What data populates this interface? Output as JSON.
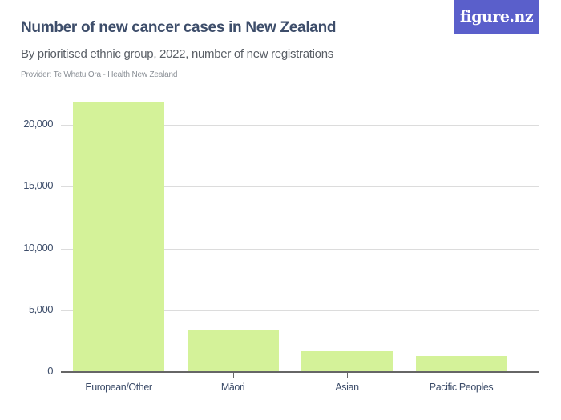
{
  "header": {
    "title": "Number of new cancer cases in New Zealand",
    "subtitle": "By prioritised ethnic group, 2022, number of new registrations",
    "provider": "Provider: Te Whatu Ora - Health New Zealand",
    "logo": "figure.nz"
  },
  "y_ticks": [
    "0",
    "5,000",
    "10,000",
    "15,000",
    "20,000"
  ],
  "colors": {
    "bar": "#d4f299",
    "title": "#3d4d6a",
    "logo_bg": "#5a5fcb"
  },
  "chart_data": {
    "type": "bar",
    "title": "Number of new cancer cases in New Zealand",
    "subtitle": "By prioritised ethnic group, 2022, number of new registrations",
    "categories": [
      "European/Other",
      "Māori",
      "Asian",
      "Pacific Peoples"
    ],
    "values": [
      21800,
      3370,
      1700,
      1300
    ],
    "xlabel": "",
    "ylabel": "",
    "ylim": [
      0,
      22000
    ],
    "yticks": [
      0,
      5000,
      10000,
      15000,
      20000
    ],
    "grid": true,
    "legend": "none"
  }
}
